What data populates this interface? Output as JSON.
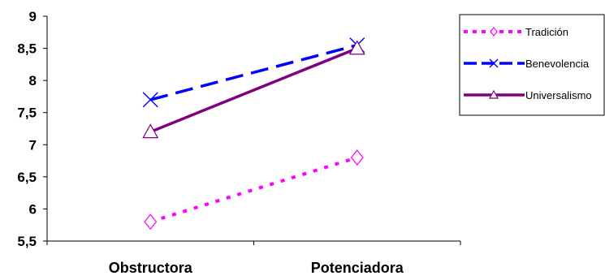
{
  "chart_data": {
    "type": "line",
    "categories": [
      "Obstructora",
      "Potenciadora"
    ],
    "ylim": [
      5.5,
      9
    ],
    "yticks": [
      "5,5",
      "6",
      "6,5",
      "7",
      "7,5",
      "8",
      "8,5",
      "9"
    ],
    "ytick_values": [
      5.5,
      6,
      6.5,
      7,
      7.5,
      8,
      8.5,
      9
    ],
    "grid": false,
    "legend_position": "top-right",
    "series": [
      {
        "name": "Tradición",
        "values": [
          5.8,
          6.8
        ],
        "color": "#ff00ff",
        "line": "dotted",
        "marker": "diamond-icon"
      },
      {
        "name": "Benevolencia",
        "values": [
          7.7,
          8.55
        ],
        "color": "#0000ff",
        "line": "dashed",
        "marker": "x-icon"
      },
      {
        "name": "Universalismo",
        "values": [
          7.2,
          8.5
        ],
        "color": "#800080",
        "line": "solid",
        "marker": "triangle-icon"
      }
    ]
  }
}
